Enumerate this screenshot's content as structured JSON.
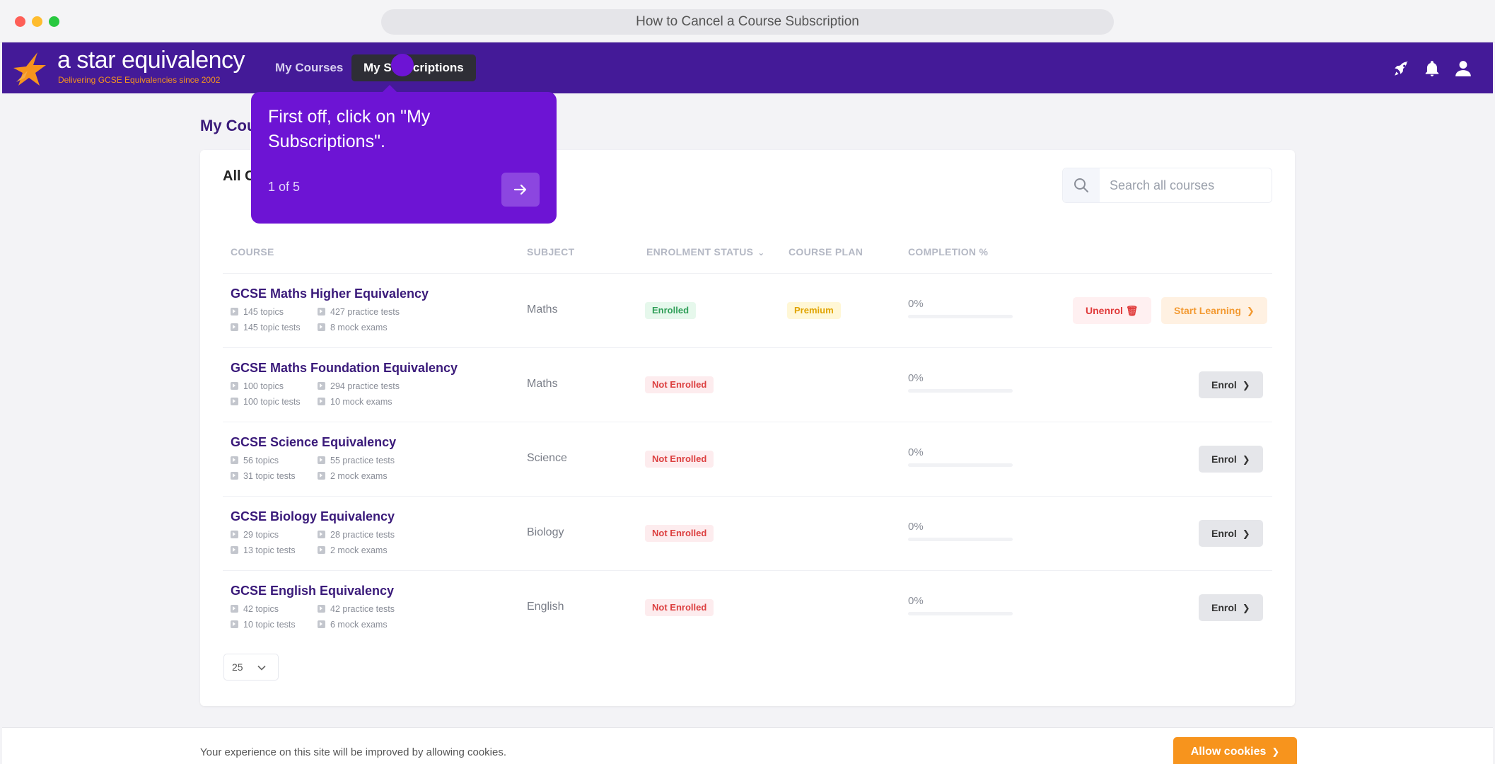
{
  "browser": {
    "url_title": "How to Cancel a Course Subscription"
  },
  "brand": {
    "name": "a star equivalency",
    "tagline": "Delivering GCSE Equivalencies since 2002",
    "accent": "#441a98",
    "orange": "#f7941d"
  },
  "nav": {
    "courses": "My Courses",
    "subscriptions": "My Subscriptions",
    "icons": [
      "rocket-icon",
      "bell-icon",
      "user-icon"
    ]
  },
  "page": {
    "title": "My Courses",
    "card_title": "All Courses"
  },
  "search": {
    "placeholder": "Search all courses",
    "value": ""
  },
  "table": {
    "headers": {
      "course": "COURSE",
      "subject": "SUBJECT",
      "status": "ENROLMENT STATUS",
      "plan": "COURSE PLAN",
      "completion": "COMPLETION %"
    },
    "rows": [
      {
        "name": "GCSE Maths Higher Equivalency",
        "topics": "145 topics",
        "topic_tests": "145 topic tests",
        "practice": "427 practice tests",
        "mocks": "8 mock exams",
        "subject": "Maths",
        "status": "Enrolled",
        "plan": "Premium",
        "completion": "0%",
        "completion_fraction": 0,
        "unenrol": "Unenrol",
        "start": "Start Learning"
      },
      {
        "name": "GCSE Maths Foundation Equivalency",
        "topics": "100 topics",
        "topic_tests": "100 topic tests",
        "practice": "294 practice tests",
        "mocks": "10 mock exams",
        "subject": "Maths",
        "status": "Not Enrolled",
        "completion": "0%",
        "completion_fraction": 0,
        "enrol": "Enrol"
      },
      {
        "name": "GCSE Science Equivalency",
        "topics": "56 topics",
        "topic_tests": "31 topic tests",
        "practice": "55 practice tests",
        "mocks": "2 mock exams",
        "subject": "Science",
        "status": "Not Enrolled",
        "completion": "0%",
        "completion_fraction": 0,
        "enrol": "Enrol"
      },
      {
        "name": "GCSE Biology Equivalency",
        "topics": "29 topics",
        "topic_tests": "13 topic tests",
        "practice": "28 practice tests",
        "mocks": "2 mock exams",
        "subject": "Biology",
        "status": "Not Enrolled",
        "completion": "0%",
        "completion_fraction": 0,
        "enrol": "Enrol"
      },
      {
        "name": "GCSE English Equivalency",
        "topics": "42 topics",
        "topic_tests": "10 topic tests",
        "practice": "42 practice tests",
        "mocks": "6 mock exams",
        "subject": "English",
        "status": "Not Enrolled",
        "completion": "0%",
        "completion_fraction": 0,
        "enrol": "Enrol"
      }
    ]
  },
  "pagination": {
    "page_size": "25"
  },
  "cookie": {
    "text": "Your experience on this site will be improved by allowing cookies.",
    "button": "Allow cookies"
  },
  "tooltip": {
    "text": "First off, click on \"My Subscriptions\".",
    "step": "1 of 5"
  }
}
